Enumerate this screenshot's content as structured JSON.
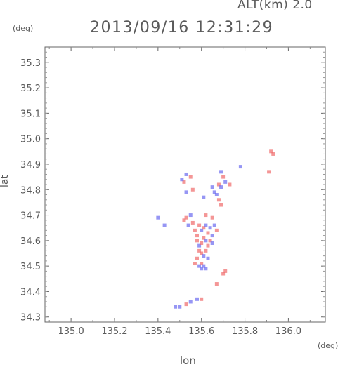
{
  "header": {
    "alt_label": "ALT(km) 2.0",
    "timestamp": "2013/09/16 12:31:29"
  },
  "chart_data": {
    "type": "scatter",
    "title": "2013/09/16 12:31:29",
    "subtitle": "ALT(km) 2.0",
    "xlabel": "lon",
    "ylabel": "lat",
    "x_unit": "(deg)",
    "y_unit": "(deg)",
    "xlim": [
      134.88,
      136.17
    ],
    "ylim": [
      34.28,
      35.36
    ],
    "x_ticks": [
      "135.0",
      "135.2",
      "135.4",
      "135.6",
      "135.8",
      "136.0"
    ],
    "x_tick_values": [
      135.0,
      135.2,
      135.4,
      135.6,
      135.8,
      136.0
    ],
    "y_ticks": [
      "34.3",
      "34.4",
      "34.5",
      "34.6",
      "34.7",
      "34.8",
      "34.9",
      "35.0",
      "35.1",
      "35.2",
      "35.3"
    ],
    "y_tick_values": [
      34.3,
      34.4,
      34.5,
      34.6,
      34.7,
      34.8,
      34.9,
      35.0,
      35.1,
      35.2,
      35.3
    ],
    "colors": {
      "positive": "#f06a6a",
      "negative": "#6a6af0"
    },
    "points": [
      {
        "x": 135.92,
        "y": 34.95,
        "v": 1
      },
      {
        "x": 135.93,
        "y": 34.94,
        "v": 1
      },
      {
        "x": 135.91,
        "y": 34.87,
        "v": 1
      },
      {
        "x": 135.78,
        "y": 34.89,
        "v": -1
      },
      {
        "x": 135.69,
        "y": 34.87,
        "v": -1
      },
      {
        "x": 135.7,
        "y": 34.85,
        "v": 1
      },
      {
        "x": 135.53,
        "y": 34.86,
        "v": -1
      },
      {
        "x": 135.55,
        "y": 34.85,
        "v": 1
      },
      {
        "x": 135.52,
        "y": 34.83,
        "v": 1
      },
      {
        "x": 135.51,
        "y": 34.84,
        "v": -1
      },
      {
        "x": 135.56,
        "y": 34.8,
        "v": 1
      },
      {
        "x": 135.53,
        "y": 34.79,
        "v": -1
      },
      {
        "x": 135.65,
        "y": 34.81,
        "v": -1
      },
      {
        "x": 135.66,
        "y": 34.79,
        "v": -1
      },
      {
        "x": 135.67,
        "y": 34.78,
        "v": -1
      },
      {
        "x": 135.68,
        "y": 34.82,
        "v": 1
      },
      {
        "x": 135.69,
        "y": 34.81,
        "v": -1
      },
      {
        "x": 135.71,
        "y": 34.83,
        "v": -1
      },
      {
        "x": 135.73,
        "y": 34.82,
        "v": 1
      },
      {
        "x": 135.68,
        "y": 34.76,
        "v": 1
      },
      {
        "x": 135.69,
        "y": 34.74,
        "v": 1
      },
      {
        "x": 135.61,
        "y": 34.77,
        "v": -1
      },
      {
        "x": 135.4,
        "y": 34.69,
        "v": -1
      },
      {
        "x": 135.43,
        "y": 34.66,
        "v": -1
      },
      {
        "x": 135.52,
        "y": 34.68,
        "v": 1
      },
      {
        "x": 135.53,
        "y": 34.69,
        "v": 1
      },
      {
        "x": 135.55,
        "y": 34.7,
        "v": -1
      },
      {
        "x": 135.56,
        "y": 34.67,
        "v": 1
      },
      {
        "x": 135.54,
        "y": 34.66,
        "v": -1
      },
      {
        "x": 135.57,
        "y": 34.64,
        "v": 1
      },
      {
        "x": 135.58,
        "y": 34.62,
        "v": 1
      },
      {
        "x": 135.59,
        "y": 34.66,
        "v": 1
      },
      {
        "x": 135.6,
        "y": 34.64,
        "v": -1
      },
      {
        "x": 135.61,
        "y": 34.65,
        "v": 1
      },
      {
        "x": 135.62,
        "y": 34.66,
        "v": -1
      },
      {
        "x": 135.63,
        "y": 34.63,
        "v": 1
      },
      {
        "x": 135.64,
        "y": 34.65,
        "v": -1
      },
      {
        "x": 135.65,
        "y": 34.62,
        "v": -1
      },
      {
        "x": 135.66,
        "y": 34.66,
        "v": -1
      },
      {
        "x": 135.67,
        "y": 34.64,
        "v": 1
      },
      {
        "x": 135.65,
        "y": 34.69,
        "v": 1
      },
      {
        "x": 135.62,
        "y": 34.7,
        "v": 1
      },
      {
        "x": 135.58,
        "y": 34.6,
        "v": 1
      },
      {
        "x": 135.59,
        "y": 34.58,
        "v": -1
      },
      {
        "x": 135.6,
        "y": 34.59,
        "v": 1
      },
      {
        "x": 135.61,
        "y": 34.61,
        "v": 1
      },
      {
        "x": 135.62,
        "y": 34.6,
        "v": -1
      },
      {
        "x": 135.63,
        "y": 34.58,
        "v": 1
      },
      {
        "x": 135.64,
        "y": 34.6,
        "v": 1
      },
      {
        "x": 135.65,
        "y": 34.59,
        "v": -1
      },
      {
        "x": 135.59,
        "y": 34.56,
        "v": 1
      },
      {
        "x": 135.6,
        "y": 34.55,
        "v": 1
      },
      {
        "x": 135.61,
        "y": 34.54,
        "v": -1
      },
      {
        "x": 135.62,
        "y": 34.56,
        "v": 1
      },
      {
        "x": 135.58,
        "y": 34.53,
        "v": 1
      },
      {
        "x": 135.6,
        "y": 34.51,
        "v": 1
      },
      {
        "x": 135.63,
        "y": 34.53,
        "v": -1
      },
      {
        "x": 135.59,
        "y": 34.5,
        "v": -1
      },
      {
        "x": 135.6,
        "y": 34.49,
        "v": -1
      },
      {
        "x": 135.61,
        "y": 34.5,
        "v": -1
      },
      {
        "x": 135.62,
        "y": 34.49,
        "v": -1
      },
      {
        "x": 135.57,
        "y": 34.51,
        "v": 1
      },
      {
        "x": 135.71,
        "y": 34.48,
        "v": 1
      },
      {
        "x": 135.7,
        "y": 34.47,
        "v": 1
      },
      {
        "x": 135.67,
        "y": 34.43,
        "v": 1
      },
      {
        "x": 135.6,
        "y": 34.37,
        "v": 1
      },
      {
        "x": 135.58,
        "y": 34.37,
        "v": -1
      },
      {
        "x": 135.55,
        "y": 34.36,
        "v": -1
      },
      {
        "x": 135.53,
        "y": 34.35,
        "v": 1
      },
      {
        "x": 135.5,
        "y": 34.34,
        "v": -1
      },
      {
        "x": 135.48,
        "y": 34.34,
        "v": -1
      }
    ]
  }
}
